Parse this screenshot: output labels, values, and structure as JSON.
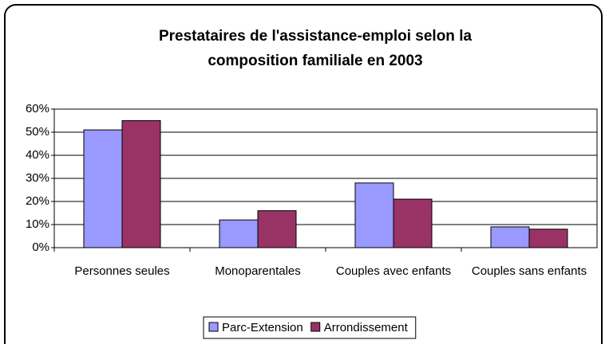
{
  "chart_data": {
    "type": "bar",
    "title": "Prestataires de l'assistance-emploi selon la composition familiale en 2003",
    "categories": [
      "Personnes seules",
      "Monoparentales",
      "Couples avec enfants",
      "Couples sans enfants"
    ],
    "series": [
      {
        "name": "Parc-Extension",
        "color": "#9999ff",
        "values": [
          51,
          12,
          28,
          9
        ]
      },
      {
        "name": "Arrondissement",
        "color": "#993366",
        "values": [
          55,
          16,
          21,
          8
        ]
      }
    ],
    "ylim": [
      0,
      60
    ],
    "yticks": [
      {
        "value": 0,
        "label": "0%"
      },
      {
        "value": 10,
        "label": "10%"
      },
      {
        "value": 20,
        "label": "20%"
      },
      {
        "value": 30,
        "label": "30%"
      },
      {
        "value": 40,
        "label": "40%"
      },
      {
        "value": 50,
        "label": "50%"
      },
      {
        "value": 60,
        "label": "60%"
      }
    ],
    "grid": true,
    "legend": "bottom"
  }
}
